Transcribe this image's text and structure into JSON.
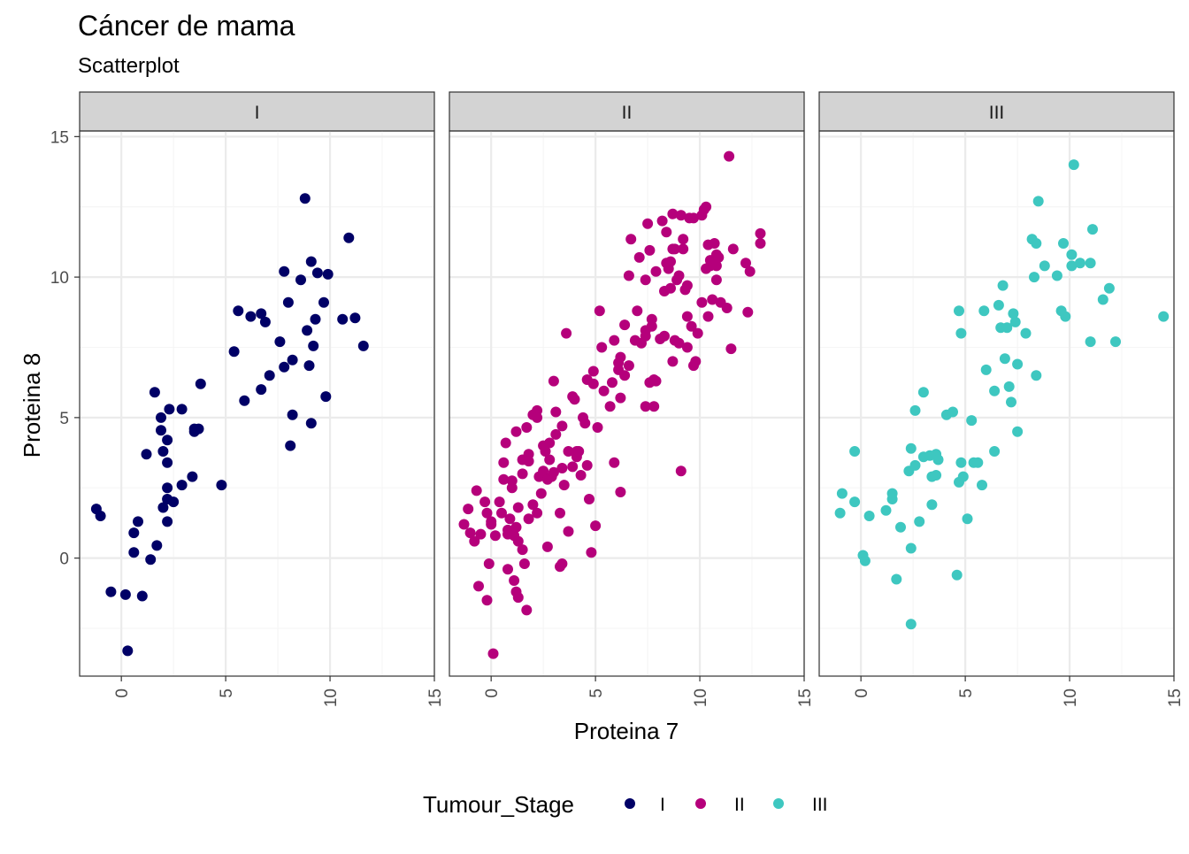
{
  "colors": {
    "I": "#000066",
    "II": "#B5007B",
    "III": "#3EC7C0",
    "strip_fill": "#D3D3D3",
    "grid_major": "#EBEBEB",
    "grid_minor": "#F5F5F5",
    "panel_border": "#333333"
  },
  "chart_data": {
    "type": "scatter",
    "title": "Cáncer de mama",
    "subtitle": "Scatterplot",
    "xlabel": "Proteina 7",
    "ylabel": "Proteina 8",
    "xlim": [
      -2.0,
      15.0
    ],
    "ylim": [
      -4.2,
      15.2
    ],
    "x_ticks": [
      "0",
      "5",
      "10",
      "15"
    ],
    "y_ticks": [
      "0",
      "5",
      "10",
      "15"
    ],
    "grid": true,
    "facet_by": "Tumour_Stage",
    "legend": {
      "title": "Tumour_Stage",
      "position": "bottom",
      "entries": [
        "I",
        "II",
        "III"
      ]
    },
    "facets": [
      {
        "label": "I",
        "points": [
          [
            -1.2,
            1.75
          ],
          [
            -1.0,
            1.5
          ],
          [
            -0.5,
            -1.2
          ],
          [
            0.2,
            -1.3
          ],
          [
            0.3,
            -3.3
          ],
          [
            0.6,
            0.9
          ],
          [
            0.6,
            0.2
          ],
          [
            0.8,
            1.3
          ],
          [
            1.0,
            -1.35
          ],
          [
            1.2,
            3.7
          ],
          [
            1.4,
            -0.05
          ],
          [
            1.6,
            5.9
          ],
          [
            1.7,
            0.45
          ],
          [
            1.9,
            5.0
          ],
          [
            1.9,
            4.55
          ],
          [
            2.0,
            3.8
          ],
          [
            2.0,
            1.8
          ],
          [
            2.2,
            2.5
          ],
          [
            2.2,
            2.1
          ],
          [
            2.2,
            1.3
          ],
          [
            2.2,
            4.2
          ],
          [
            2.2,
            3.4
          ],
          [
            2.3,
            5.3
          ],
          [
            2.5,
            2.0
          ],
          [
            2.9,
            5.3
          ],
          [
            2.9,
            2.6
          ],
          [
            3.4,
            2.9
          ],
          [
            3.5,
            4.5
          ],
          [
            3.5,
            4.6
          ],
          [
            3.7,
            4.6
          ],
          [
            3.8,
            6.2
          ],
          [
            4.8,
            2.6
          ],
          [
            5.4,
            7.35
          ],
          [
            5.6,
            8.8
          ],
          [
            5.9,
            5.6
          ],
          [
            6.2,
            8.6
          ],
          [
            6.7,
            6.0
          ],
          [
            6.7,
            8.7
          ],
          [
            6.9,
            8.4
          ],
          [
            7.1,
            6.5
          ],
          [
            7.6,
            7.7
          ],
          [
            7.8,
            10.2
          ],
          [
            7.8,
            6.8
          ],
          [
            8.0,
            9.1
          ],
          [
            8.1,
            4.0
          ],
          [
            8.2,
            5.1
          ],
          [
            8.2,
            7.05
          ],
          [
            8.6,
            9.9
          ],
          [
            8.8,
            12.8
          ],
          [
            8.9,
            8.1
          ],
          [
            9.0,
            6.85
          ],
          [
            9.1,
            4.8
          ],
          [
            9.1,
            10.55
          ],
          [
            9.2,
            7.55
          ],
          [
            9.3,
            8.5
          ],
          [
            9.4,
            10.15
          ],
          [
            9.7,
            9.1
          ],
          [
            9.8,
            5.75
          ],
          [
            9.9,
            10.1
          ],
          [
            10.6,
            8.5
          ],
          [
            10.9,
            11.4
          ],
          [
            11.2,
            8.55
          ],
          [
            11.6,
            7.55
          ]
        ]
      },
      {
        "label": "II",
        "points": [
          [
            -1.3,
            1.2
          ],
          [
            -1.1,
            1.75
          ],
          [
            -1.0,
            0.9
          ],
          [
            -0.8,
            0.6
          ],
          [
            -0.7,
            2.4
          ],
          [
            -0.6,
            -1.0
          ],
          [
            -0.5,
            0.85
          ],
          [
            -0.3,
            2.0
          ],
          [
            -0.2,
            1.6
          ],
          [
            -0.2,
            -1.5
          ],
          [
            -0.1,
            -0.2
          ],
          [
            0.0,
            1.3
          ],
          [
            0.0,
            1.2
          ],
          [
            0.1,
            -3.4
          ],
          [
            0.2,
            0.8
          ],
          [
            0.4,
            2.0
          ],
          [
            0.5,
            1.6
          ],
          [
            0.6,
            2.8
          ],
          [
            0.6,
            3.4
          ],
          [
            0.7,
            4.1
          ],
          [
            0.8,
            1.0
          ],
          [
            0.8,
            0.85
          ],
          [
            0.8,
            -0.4
          ],
          [
            0.9,
            1.4
          ],
          [
            1.0,
            2.75
          ],
          [
            1.0,
            2.5
          ],
          [
            1.1,
            -0.8
          ],
          [
            1.1,
            0.8
          ],
          [
            1.2,
            -1.2
          ],
          [
            1.2,
            4.5
          ],
          [
            1.2,
            1.1
          ],
          [
            1.3,
            -1.4
          ],
          [
            1.3,
            0.6
          ],
          [
            1.3,
            1.8
          ],
          [
            1.5,
            3.5
          ],
          [
            1.5,
            3.0
          ],
          [
            1.5,
            0.3
          ],
          [
            1.6,
            -0.2
          ],
          [
            1.7,
            -1.85
          ],
          [
            1.7,
            4.65
          ],
          [
            1.8,
            3.7
          ],
          [
            1.8,
            1.4
          ],
          [
            1.8,
            3.45
          ],
          [
            2.0,
            5.1
          ],
          [
            2.0,
            1.9
          ],
          [
            2.2,
            5.25
          ],
          [
            2.2,
            5.0
          ],
          [
            2.2,
            1.6
          ],
          [
            2.3,
            2.9
          ],
          [
            2.4,
            2.3
          ],
          [
            2.5,
            4.0
          ],
          [
            2.5,
            3.1
          ],
          [
            2.6,
            3.8
          ],
          [
            2.7,
            2.8
          ],
          [
            2.7,
            0.4
          ],
          [
            2.8,
            3.5
          ],
          [
            2.8,
            4.1
          ],
          [
            2.9,
            2.9
          ],
          [
            3.0,
            3.05
          ],
          [
            3.0,
            6.3
          ],
          [
            3.1,
            5.2
          ],
          [
            3.1,
            4.4
          ],
          [
            3.3,
            1.6
          ],
          [
            3.3,
            -0.3
          ],
          [
            3.4,
            -0.2
          ],
          [
            3.4,
            3.2
          ],
          [
            3.4,
            4.7
          ],
          [
            3.5,
            2.6
          ],
          [
            3.6,
            8.0
          ],
          [
            3.7,
            0.95
          ],
          [
            3.7,
            3.8
          ],
          [
            3.9,
            3.25
          ],
          [
            3.9,
            5.75
          ],
          [
            4.0,
            5.65
          ],
          [
            4.1,
            3.6
          ],
          [
            4.1,
            3.8
          ],
          [
            4.2,
            3.8
          ],
          [
            4.3,
            2.95
          ],
          [
            4.4,
            5.0
          ],
          [
            4.5,
            4.8
          ],
          [
            4.6,
            6.35
          ],
          [
            4.6,
            3.3
          ],
          [
            4.7,
            2.1
          ],
          [
            4.8,
            0.2
          ],
          [
            4.9,
            6.65
          ],
          [
            4.9,
            6.2
          ],
          [
            5.0,
            1.15
          ],
          [
            5.1,
            4.65
          ],
          [
            5.2,
            8.8
          ],
          [
            5.3,
            7.5
          ],
          [
            5.4,
            5.95
          ],
          [
            5.7,
            5.4
          ],
          [
            5.8,
            6.25
          ],
          [
            5.9,
            3.4
          ],
          [
            5.9,
            7.75
          ],
          [
            6.1,
            6.95
          ],
          [
            6.1,
            6.7
          ],
          [
            6.2,
            2.35
          ],
          [
            6.2,
            5.7
          ],
          [
            6.2,
            7.15
          ],
          [
            6.4,
            8.3
          ],
          [
            6.4,
            6.5
          ],
          [
            6.6,
            10.05
          ],
          [
            6.6,
            6.85
          ],
          [
            6.7,
            11.35
          ],
          [
            6.9,
            7.75
          ],
          [
            7.0,
            8.8
          ],
          [
            7.1,
            10.7
          ],
          [
            7.2,
            7.65
          ],
          [
            7.4,
            9.9
          ],
          [
            7.4,
            8.1
          ],
          [
            7.4,
            5.4
          ],
          [
            7.4,
            7.9
          ],
          [
            7.5,
            11.9
          ],
          [
            7.6,
            6.25
          ],
          [
            7.6,
            10.95
          ],
          [
            7.7,
            8.5
          ],
          [
            7.7,
            8.25
          ],
          [
            7.8,
            6.35
          ],
          [
            7.8,
            5.4
          ],
          [
            7.9,
            6.3
          ],
          [
            7.9,
            10.2
          ],
          [
            8.1,
            7.8
          ],
          [
            8.2,
            12.0
          ],
          [
            8.3,
            7.9
          ],
          [
            8.3,
            9.5
          ],
          [
            8.4,
            11.6
          ],
          [
            8.4,
            10.5
          ],
          [
            8.5,
            10.3
          ],
          [
            8.6,
            10.55
          ],
          [
            8.6,
            9.6
          ],
          [
            8.7,
            7.0
          ],
          [
            8.7,
            11.0
          ],
          [
            8.7,
            12.25
          ],
          [
            8.8,
            7.75
          ],
          [
            8.8,
            11.0
          ],
          [
            8.9,
            9.9
          ],
          [
            9.0,
            7.65
          ],
          [
            9.0,
            10.05
          ],
          [
            9.1,
            3.1
          ],
          [
            9.1,
            12.2
          ],
          [
            9.2,
            11.35
          ],
          [
            9.2,
            11.0
          ],
          [
            9.3,
            9.55
          ],
          [
            9.4,
            9.7
          ],
          [
            9.4,
            8.6
          ],
          [
            9.4,
            7.5
          ],
          [
            9.5,
            12.1
          ],
          [
            9.6,
            8.25
          ],
          [
            9.7,
            12.1
          ],
          [
            9.7,
            6.85
          ],
          [
            9.8,
            7.0
          ],
          [
            9.9,
            8.0
          ],
          [
            10.1,
            9.1
          ],
          [
            10.1,
            12.2
          ],
          [
            10.2,
            12.4
          ],
          [
            10.3,
            10.3
          ],
          [
            10.3,
            12.5
          ],
          [
            10.4,
            8.6
          ],
          [
            10.4,
            11.15
          ],
          [
            10.5,
            10.4
          ],
          [
            10.5,
            10.6
          ],
          [
            10.6,
            9.2
          ],
          [
            10.7,
            11.2
          ],
          [
            10.8,
            9.9
          ],
          [
            10.8,
            10.8
          ],
          [
            10.8,
            10.4
          ],
          [
            10.9,
            10.7
          ],
          [
            11.0,
            9.1
          ],
          [
            11.3,
            8.9
          ],
          [
            11.4,
            14.3
          ],
          [
            11.5,
            7.45
          ],
          [
            11.6,
            11.0
          ],
          [
            12.2,
            10.5
          ],
          [
            12.3,
            8.75
          ],
          [
            12.4,
            10.2
          ],
          [
            12.9,
            11.55
          ],
          [
            12.9,
            11.2
          ]
        ]
      },
      {
        "label": "III",
        "points": [
          [
            -1.0,
            1.6
          ],
          [
            -0.9,
            2.3
          ],
          [
            -0.3,
            2.0
          ],
          [
            -0.3,
            3.8
          ],
          [
            0.1,
            0.1
          ],
          [
            0.2,
            -0.1
          ],
          [
            0.4,
            1.5
          ],
          [
            1.2,
            1.7
          ],
          [
            1.5,
            2.1
          ],
          [
            1.5,
            2.3
          ],
          [
            1.7,
            -0.75
          ],
          [
            1.9,
            1.1
          ],
          [
            2.3,
            3.1
          ],
          [
            2.4,
            0.35
          ],
          [
            2.4,
            -2.35
          ],
          [
            2.4,
            3.9
          ],
          [
            2.6,
            3.3
          ],
          [
            2.6,
            5.25
          ],
          [
            2.8,
            1.3
          ],
          [
            3.0,
            5.9
          ],
          [
            3.0,
            3.6
          ],
          [
            3.3,
            3.65
          ],
          [
            3.4,
            1.9
          ],
          [
            3.4,
            2.9
          ],
          [
            3.6,
            3.7
          ],
          [
            3.6,
            2.95
          ],
          [
            3.7,
            3.5
          ],
          [
            4.1,
            5.1
          ],
          [
            4.4,
            5.2
          ],
          [
            4.6,
            -0.6
          ],
          [
            4.7,
            8.8
          ],
          [
            4.7,
            2.7
          ],
          [
            4.8,
            3.4
          ],
          [
            4.8,
            8.0
          ],
          [
            4.9,
            2.9
          ],
          [
            5.1,
            1.4
          ],
          [
            5.3,
            4.9
          ],
          [
            5.4,
            3.4
          ],
          [
            5.6,
            3.4
          ],
          [
            5.8,
            2.6
          ],
          [
            5.9,
            8.8
          ],
          [
            6.0,
            6.7
          ],
          [
            6.4,
            3.8
          ],
          [
            6.4,
            5.95
          ],
          [
            6.6,
            9.0
          ],
          [
            6.7,
            8.2
          ],
          [
            6.8,
            9.7
          ],
          [
            6.9,
            7.1
          ],
          [
            7.0,
            8.2
          ],
          [
            7.1,
            6.1
          ],
          [
            7.2,
            5.55
          ],
          [
            7.3,
            8.7
          ],
          [
            7.4,
            8.4
          ],
          [
            7.5,
            6.9
          ],
          [
            7.5,
            4.5
          ],
          [
            7.9,
            8.0
          ],
          [
            8.2,
            11.35
          ],
          [
            8.3,
            10.0
          ],
          [
            8.4,
            11.2
          ],
          [
            8.5,
            12.7
          ],
          [
            8.4,
            6.5
          ],
          [
            8.8,
            10.4
          ],
          [
            9.4,
            10.05
          ],
          [
            9.6,
            8.8
          ],
          [
            9.7,
            11.2
          ],
          [
            9.8,
            8.6
          ],
          [
            10.1,
            10.4
          ],
          [
            10.2,
            14.0
          ],
          [
            10.1,
            10.8
          ],
          [
            10.5,
            10.5
          ],
          [
            11.0,
            7.7
          ],
          [
            11.0,
            10.5
          ],
          [
            11.1,
            11.7
          ],
          [
            11.6,
            9.2
          ],
          [
            11.9,
            9.6
          ],
          [
            12.2,
            7.7
          ],
          [
            14.5,
            8.6
          ]
        ]
      }
    ]
  }
}
